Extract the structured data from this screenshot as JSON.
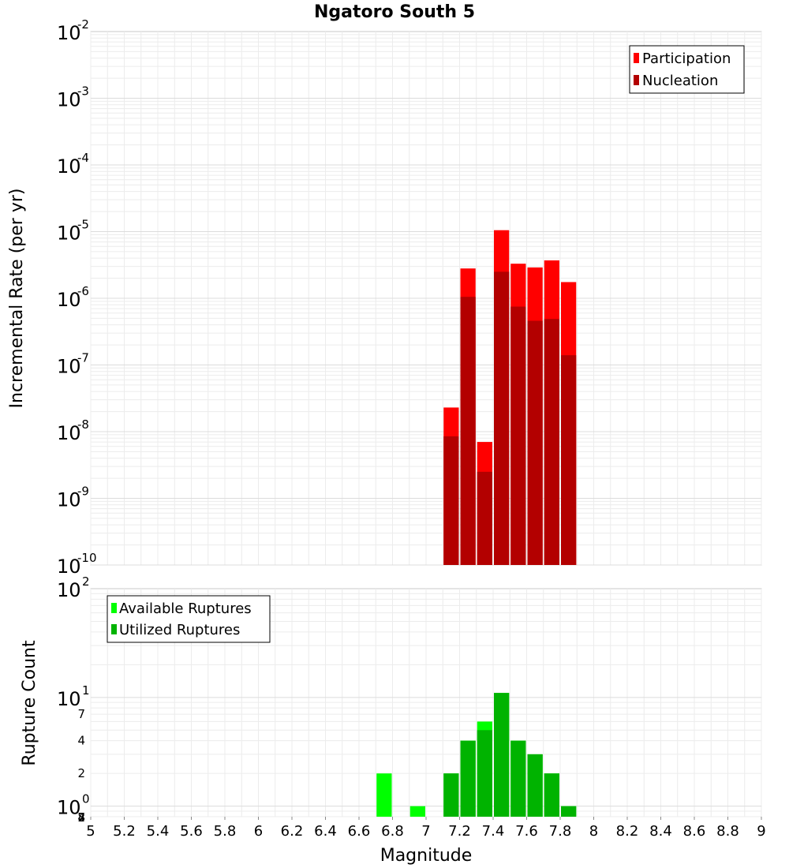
{
  "chart_data": [
    {
      "type": "bar",
      "title": "Ngatoro South 5",
      "xlabel": "",
      "ylabel": "Incremental Rate (per yr)",
      "yscale": "log",
      "ylim": [
        1e-10,
        0.01
      ],
      "xlim": [
        5,
        9
      ],
      "grid": true,
      "legend_position": "top-right",
      "bin_width": 0.1,
      "x": [
        7.15,
        7.25,
        7.35,
        7.45,
        7.55,
        7.65,
        7.75,
        7.85
      ],
      "y_tick_labels": [
        {
          "base": "10",
          "exp": "-2"
        },
        {
          "base": "10",
          "exp": "-3"
        },
        {
          "base": "10",
          "exp": "-4"
        },
        {
          "base": "10",
          "exp": "-5"
        },
        {
          "base": "10",
          "exp": "-6"
        },
        {
          "base": "10",
          "exp": "-7"
        },
        {
          "base": "10",
          "exp": "-8"
        },
        {
          "base": "10",
          "exp": "-9"
        },
        {
          "base": "10",
          "exp": "-10"
        }
      ],
      "series": [
        {
          "name": "Participation",
          "color": "#ff0000",
          "values": [
            2.3e-08,
            2.8e-06,
            7e-09,
            1.05e-05,
            3.3e-06,
            2.9e-06,
            3.7e-06,
            1.75e-06
          ]
        },
        {
          "name": "Nucleation",
          "color": "#b30000",
          "values": [
            8.5e-09,
            1.05e-06,
            2.5e-09,
            2.5e-06,
            7.5e-07,
            4.6e-07,
            4.9e-07,
            1.4e-07
          ]
        }
      ]
    },
    {
      "type": "bar",
      "title": "",
      "xlabel": "Magnitude",
      "ylabel": "Rupture Count",
      "yscale": "log",
      "ylim": [
        0.8,
        100
      ],
      "xlim": [
        5,
        9
      ],
      "grid": true,
      "legend_position": "top-left",
      "bin_width": 0.1,
      "x_ticks": [
        "5",
        "5.2",
        "5.4",
        "5.6",
        "5.8",
        "6",
        "6.2",
        "6.4",
        "6.6",
        "6.8",
        "7",
        "7.2",
        "7.4",
        "7.6",
        "7.8",
        "8",
        "8.2",
        "8.4",
        "8.6",
        "8.8",
        "9"
      ],
      "y_tick_labels": [
        {
          "base": "10",
          "exp": "2"
        },
        {
          "base": "10",
          "exp": "1"
        },
        {
          "base": "10",
          "exp": "0"
        }
      ],
      "y_minor_labels": [
        {
          "value": 7,
          "label": "7"
        },
        {
          "value": 4,
          "label": "4"
        },
        {
          "value": 2,
          "label": "2"
        },
        {
          "value": 0.7,
          "label": "7"
        },
        {
          "value": 0.4,
          "label": "4"
        },
        {
          "value": 0.2,
          "label": "2"
        },
        {
          "value": 0.08,
          "label": "8"
        }
      ],
      "series": [
        {
          "name": "Available Ruptures",
          "color": "#00ff00",
          "x": [
            6.75,
            6.95,
            7.15,
            7.25,
            7.35,
            7.45,
            7.55,
            7.65,
            7.75,
            7.85
          ],
          "values": [
            2,
            1,
            2,
            4,
            6,
            11,
            4,
            3,
            2,
            1
          ]
        },
        {
          "name": "Utilized Ruptures",
          "color": "#00b300",
          "x": [
            7.15,
            7.25,
            7.35,
            7.45,
            7.55,
            7.65,
            7.75,
            7.85
          ],
          "values": [
            2,
            4,
            5,
            11,
            4,
            3,
            2,
            1
          ]
        }
      ]
    }
  ]
}
